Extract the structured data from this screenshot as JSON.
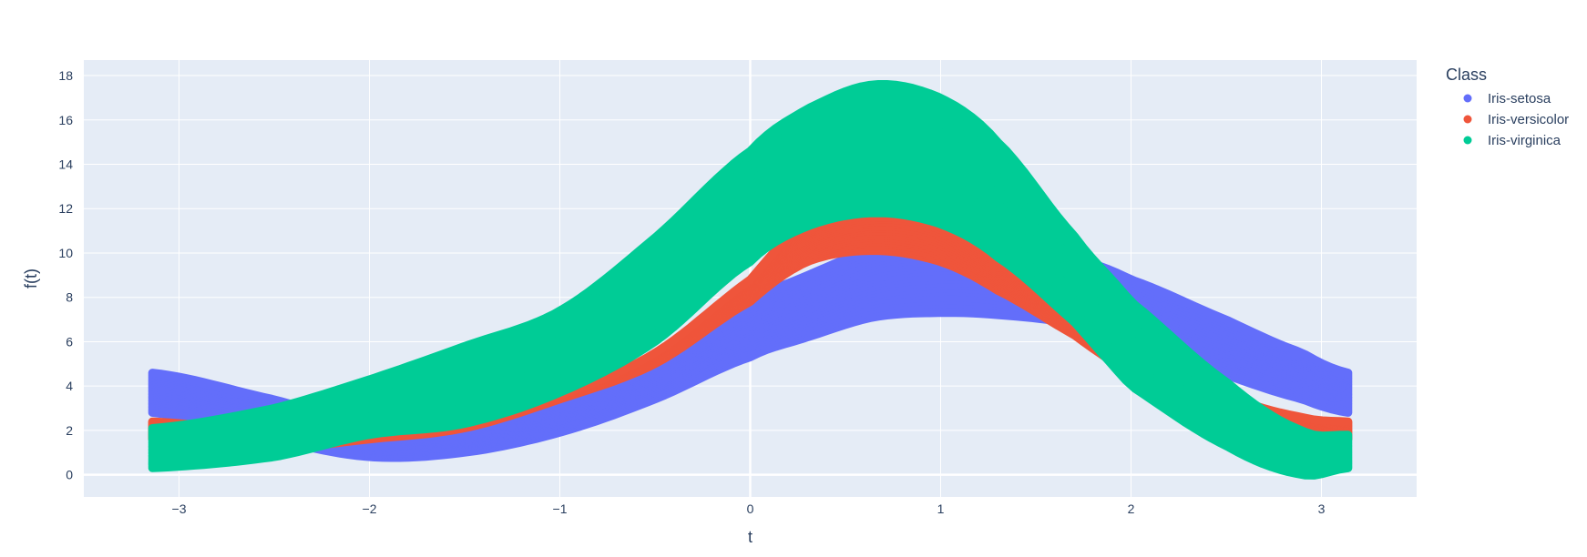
{
  "chart_data": {
    "type": "line",
    "title": "",
    "xlabel": "t",
    "ylabel": "f(t)",
    "xlim": [
      -3.5,
      3.5
    ],
    "ylim": [
      -1,
      18.7
    ],
    "x_ticks": [
      -3,
      -2,
      -1,
      0,
      1,
      2,
      3
    ],
    "x_tick_labels": [
      "−3",
      "−2",
      "−1",
      "0",
      "1",
      "2",
      "3"
    ],
    "y_ticks": [
      0,
      2,
      4,
      6,
      8,
      10,
      12,
      14,
      16,
      18
    ],
    "y_tick_labels": [
      "0",
      "2",
      "4",
      "6",
      "8",
      "10",
      "12",
      "14",
      "16",
      "18"
    ],
    "grid": true,
    "legend": {
      "title": "Class",
      "placement": "top-right",
      "entries": [
        "Iris-setosa",
        "Iris-versicolor",
        "Iris-virginica"
      ]
    },
    "colors": {
      "Iris-setosa": "#636efa",
      "Iris-versicolor": "#ef553b",
      "Iris-virginica": "#00cc96",
      "plot_background": "#e5ecf6",
      "grid": "#ffffff"
    },
    "x_samples": [
      -3.14,
      -2.5,
      -2,
      -1.5,
      -1,
      -0.5,
      0,
      0.3,
      0.65,
      1,
      1.3,
      1.7,
      2,
      2.5,
      2.9,
      3.14
    ],
    "series": [
      {
        "name": "Iris-setosa",
        "band_upper": [
          4.6,
          3.4,
          2.3,
          2.1,
          3.5,
          5.4,
          7.8,
          9.0,
          10.2,
          10.7,
          10.5,
          9.8,
          8.8,
          7.0,
          5.5,
          4.6
        ],
        "band_lower": [
          2.8,
          1.6,
          0.8,
          1.0,
          1.9,
          3.4,
          5.3,
          6.2,
          7.1,
          7.3,
          7.2,
          6.8,
          5.9,
          4.5,
          3.4,
          2.8
        ]
      },
      {
        "name": "Iris-versicolor",
        "band_upper": [
          2.4,
          2.0,
          2.5,
          2.8,
          3.6,
          5.5,
          8.8,
          11.5,
          12.6,
          12.2,
          10.3,
          7.4,
          5.5,
          3.6,
          2.6,
          2.4
        ],
        "band_lower": [
          1.6,
          1.2,
          1.6,
          2.1,
          3.4,
          5.0,
          7.8,
          9.6,
          10.1,
          9.6,
          8.3,
          6.3,
          4.5,
          2.7,
          1.8,
          1.6
        ]
      },
      {
        "name": "Iris-virginica",
        "band_upper": [
          2.1,
          3.0,
          4.3,
          5.8,
          7.4,
          10.7,
          14.6,
          16.5,
          17.6,
          17.0,
          15.0,
          10.8,
          7.8,
          4.2,
          2.0,
          1.8
        ],
        "band_lower": [
          0.3,
          0.8,
          1.8,
          2.3,
          3.7,
          6.0,
          9.6,
          11.2,
          11.8,
          11.3,
          9.8,
          6.9,
          4.0,
          1.3,
          0.0,
          0.3
        ]
      }
    ]
  }
}
